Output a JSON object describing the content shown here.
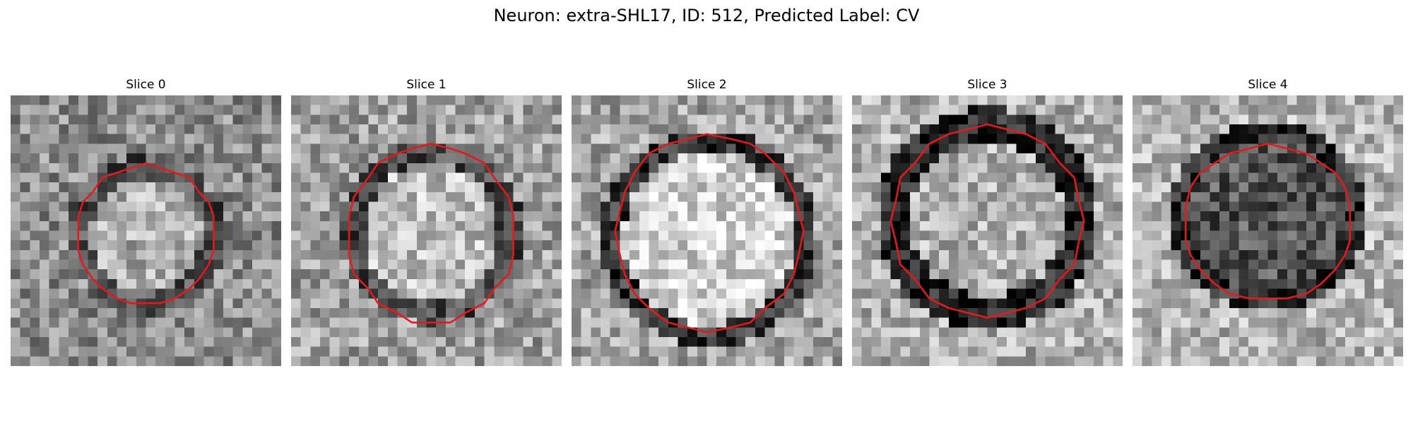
{
  "figure": {
    "title": "Neuron: extra-SHL17, ID: 512, Predicted Label: CV"
  },
  "panels": [
    {
      "title": "Slice 0",
      "index": 0
    },
    {
      "title": "Slice 1",
      "index": 1
    },
    {
      "title": "Slice 2",
      "index": 2
    },
    {
      "title": "Slice 3",
      "index": 3
    },
    {
      "title": "Slice 4",
      "index": 4
    }
  ],
  "colors": {
    "contour": "#e31a1c",
    "background": "#ffffff"
  }
}
